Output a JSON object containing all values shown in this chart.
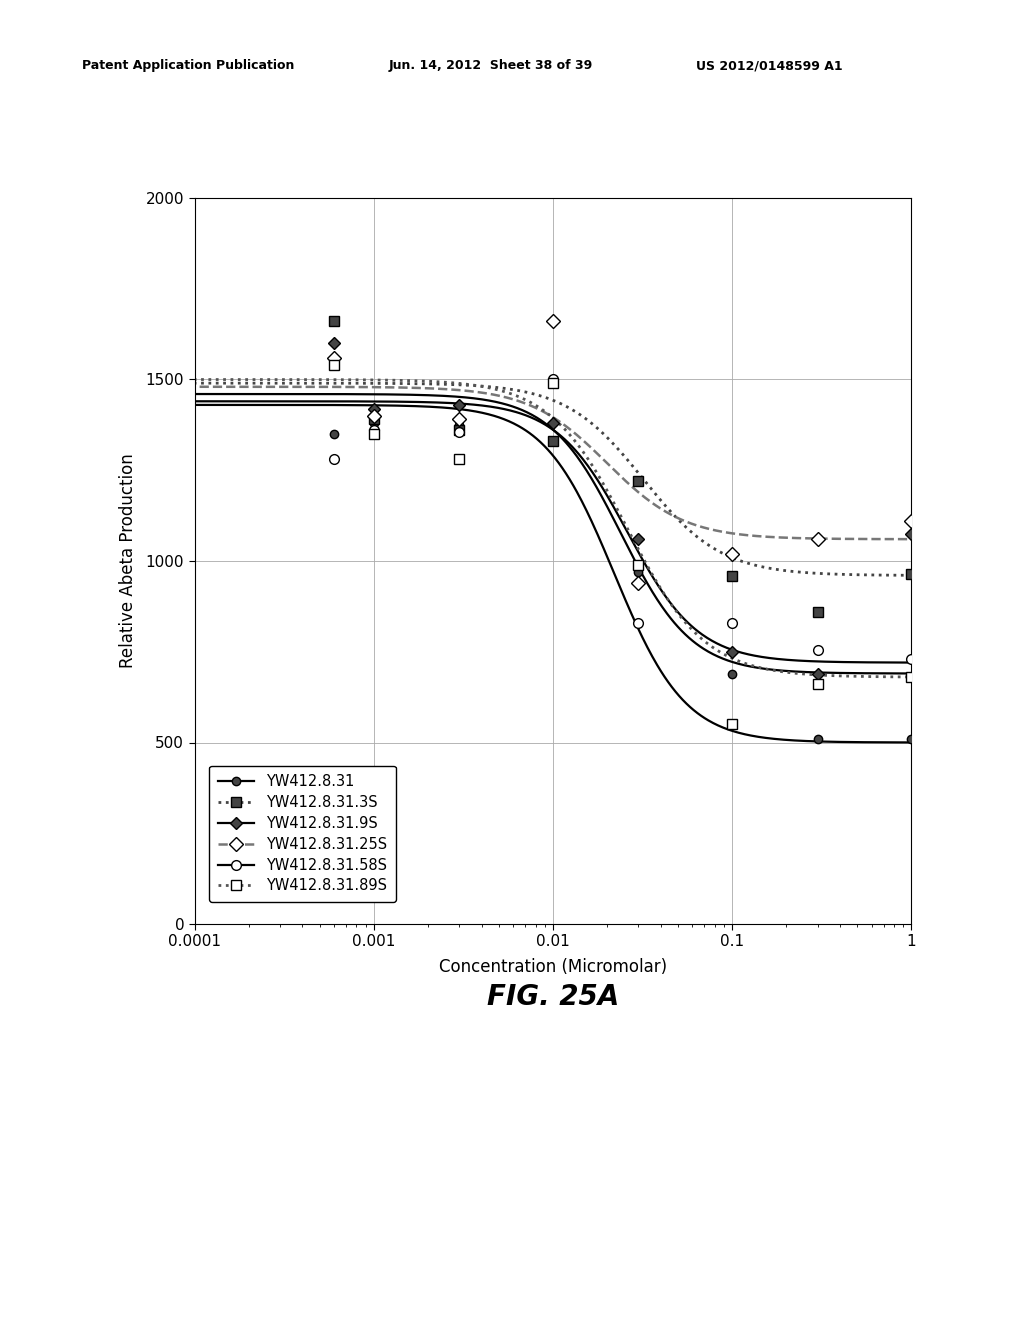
{
  "title_fig": "FIG. 25A",
  "patent_left": "Patent Application Publication",
  "patent_mid": "Jun. 14, 2012  Sheet 38 of 39",
  "patent_right": "US 2012/0148599 A1",
  "xlabel": "Concentration (Micromolar)",
  "ylabel": "Relative Abeta Production",
  "xlim": [
    0.0001,
    1.0
  ],
  "ylim": [
    0,
    2000
  ],
  "yticks": [
    0,
    500,
    1000,
    1500,
    2000
  ],
  "xticks": [
    0.0001,
    0.001,
    0.01,
    0.1,
    1.0
  ],
  "xtick_labels": [
    "0.0001",
    "0.001",
    "0.01",
    "0.1",
    "1"
  ],
  "series": [
    {
      "label": "YW412.8.31",
      "color": "#000000",
      "linestyle": "solid",
      "linewidth": 1.6,
      "marker": "o",
      "markersize": 6,
      "markerfacecolor": "#444444",
      "markeredgecolor": "#000000",
      "scatter_x": [
        0.0006,
        0.001,
        0.003,
        0.01,
        0.03,
        0.1,
        0.3,
        1.0
      ],
      "scatter_y": [
        1350,
        1380,
        1375,
        1330,
        970,
        690,
        510,
        510
      ],
      "curve_top": 1430,
      "curve_bottom": 500,
      "ic50": 0.022,
      "hill": 2.2
    },
    {
      "label": "YW412.8.31.3S",
      "color": "#444444",
      "linestyle": "dotted",
      "linewidth": 2.0,
      "marker": "s",
      "markersize": 7,
      "markerfacecolor": "#444444",
      "markeredgecolor": "#000000",
      "scatter_x": [
        0.0006,
        0.001,
        0.003,
        0.01,
        0.03,
        0.1,
        0.3,
        1.0
      ],
      "scatter_y": [
        1660,
        1390,
        1360,
        1330,
        1220,
        960,
        860,
        965
      ],
      "curve_top": 1490,
      "curve_bottom": 960,
      "ic50": 0.032,
      "hill": 2.0
    },
    {
      "label": "YW412.8.31.9S",
      "color": "#000000",
      "linestyle": "solid",
      "linewidth": 1.6,
      "marker": "D",
      "markersize": 6,
      "markerfacecolor": "#444444",
      "markeredgecolor": "#000000",
      "scatter_x": [
        0.0006,
        0.001,
        0.003,
        0.01,
        0.03,
        0.1,
        0.3,
        1.0
      ],
      "scatter_y": [
        1600,
        1420,
        1430,
        1380,
        1060,
        750,
        690,
        1075
      ],
      "curve_top": 1460,
      "curve_bottom": 690,
      "ic50": 0.024,
      "hill": 2.2
    },
    {
      "label": "YW412.8.31.25S",
      "color": "#777777",
      "linestyle": "dashed",
      "linewidth": 1.8,
      "marker": "D",
      "markersize": 7,
      "markerfacecolor": "#ffffff",
      "markeredgecolor": "#000000",
      "scatter_x": [
        0.0006,
        0.001,
        0.003,
        0.01,
        0.03,
        0.1,
        0.3,
        1.0
      ],
      "scatter_y": [
        1560,
        1400,
        1390,
        1660,
        940,
        1020,
        1060,
        1110
      ],
      "curve_top": 1480,
      "curve_bottom": 1060,
      "ic50": 0.02,
      "hill": 2.0
    },
    {
      "label": "YW412.8.31.58S",
      "color": "#000000",
      "linestyle": "solid",
      "linewidth": 1.6,
      "marker": "o",
      "markersize": 7,
      "markerfacecolor": "#ffffff",
      "markeredgecolor": "#000000",
      "scatter_x": [
        0.0006,
        0.001,
        0.003,
        0.01,
        0.03,
        0.1,
        0.3,
        1.0
      ],
      "scatter_y": [
        1280,
        1360,
        1355,
        1500,
        830,
        830,
        755,
        730
      ],
      "curve_top": 1440,
      "curve_bottom": 720,
      "ic50": 0.026,
      "hill": 2.2
    },
    {
      "label": "YW412.8.31.89S",
      "color": "#555555",
      "linestyle": "dotted",
      "linewidth": 2.0,
      "marker": "s",
      "markersize": 7,
      "markerfacecolor": "#ffffff",
      "markeredgecolor": "#000000",
      "scatter_x": [
        0.0006,
        0.001,
        0.003,
        0.01,
        0.03,
        0.1,
        0.3,
        1.0
      ],
      "scatter_y": [
        1540,
        1350,
        1280,
        1490,
        990,
        550,
        660,
        680
      ],
      "curve_top": 1500,
      "curve_bottom": 680,
      "ic50": 0.026,
      "hill": 2.0
    }
  ],
  "background_color": "#ffffff",
  "fig_label_fontsize": 20,
  "axis_fontsize": 12,
  "tick_fontsize": 11,
  "legend_fontsize": 10.5,
  "header_fontsize": 9
}
